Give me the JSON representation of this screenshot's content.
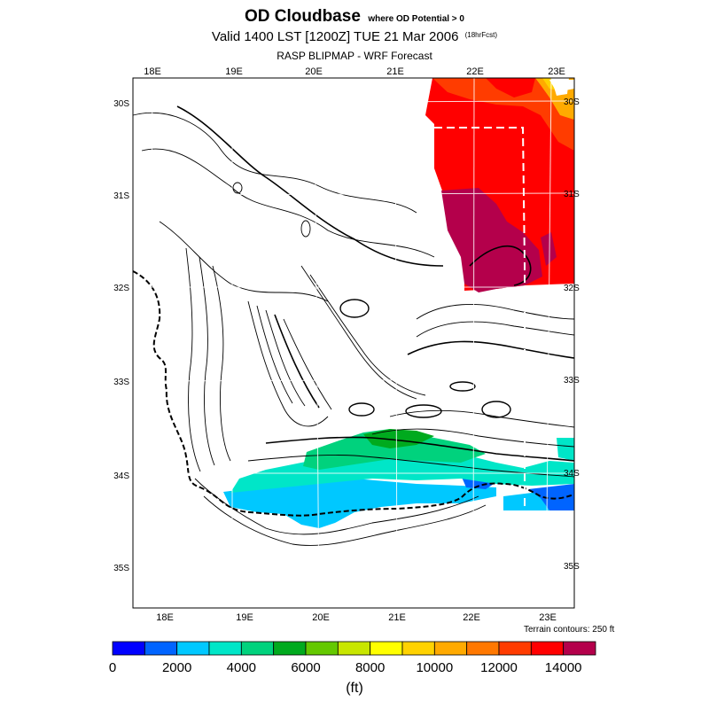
{
  "header": {
    "title": "OD Cloudbase",
    "title_qualifier": "where OD Potential > 0",
    "valid": "Valid 1400 LST [1200Z] TUE 21 Mar 2006",
    "forecast_hours": "(18hrFcst)",
    "source": "RASP BLIPMAP - WRF Forecast"
  },
  "map": {
    "top_lon_labels": [
      "18E",
      "19E",
      "20E",
      "21E",
      "22E",
      "23E"
    ],
    "bottom_lon_labels": [
      "18E",
      "19E",
      "20E",
      "21E",
      "22E",
      "23E"
    ],
    "left_lat_labels": [
      "30S",
      "31S",
      "32S",
      "33S",
      "34S",
      "35S"
    ],
    "right_lat_labels": [
      "30S",
      "31S",
      "32S",
      "33S",
      "34S",
      "35S"
    ],
    "terrain_note": "Terrain contours: 250 ft"
  },
  "colorbar": {
    "colors": [
      "#0000ff",
      "#0064ff",
      "#00c8ff",
      "#00e6c8",
      "#00d27d",
      "#00aa1e",
      "#64c800",
      "#c8e600",
      "#ffff00",
      "#ffd200",
      "#ffaa00",
      "#ff7800",
      "#ff3c00",
      "#ff0000",
      "#b4004b"
    ],
    "labels": [
      "0",
      "2000",
      "4000",
      "6000",
      "8000",
      "10000",
      "12000",
      "14000"
    ],
    "units": "(ft)"
  }
}
